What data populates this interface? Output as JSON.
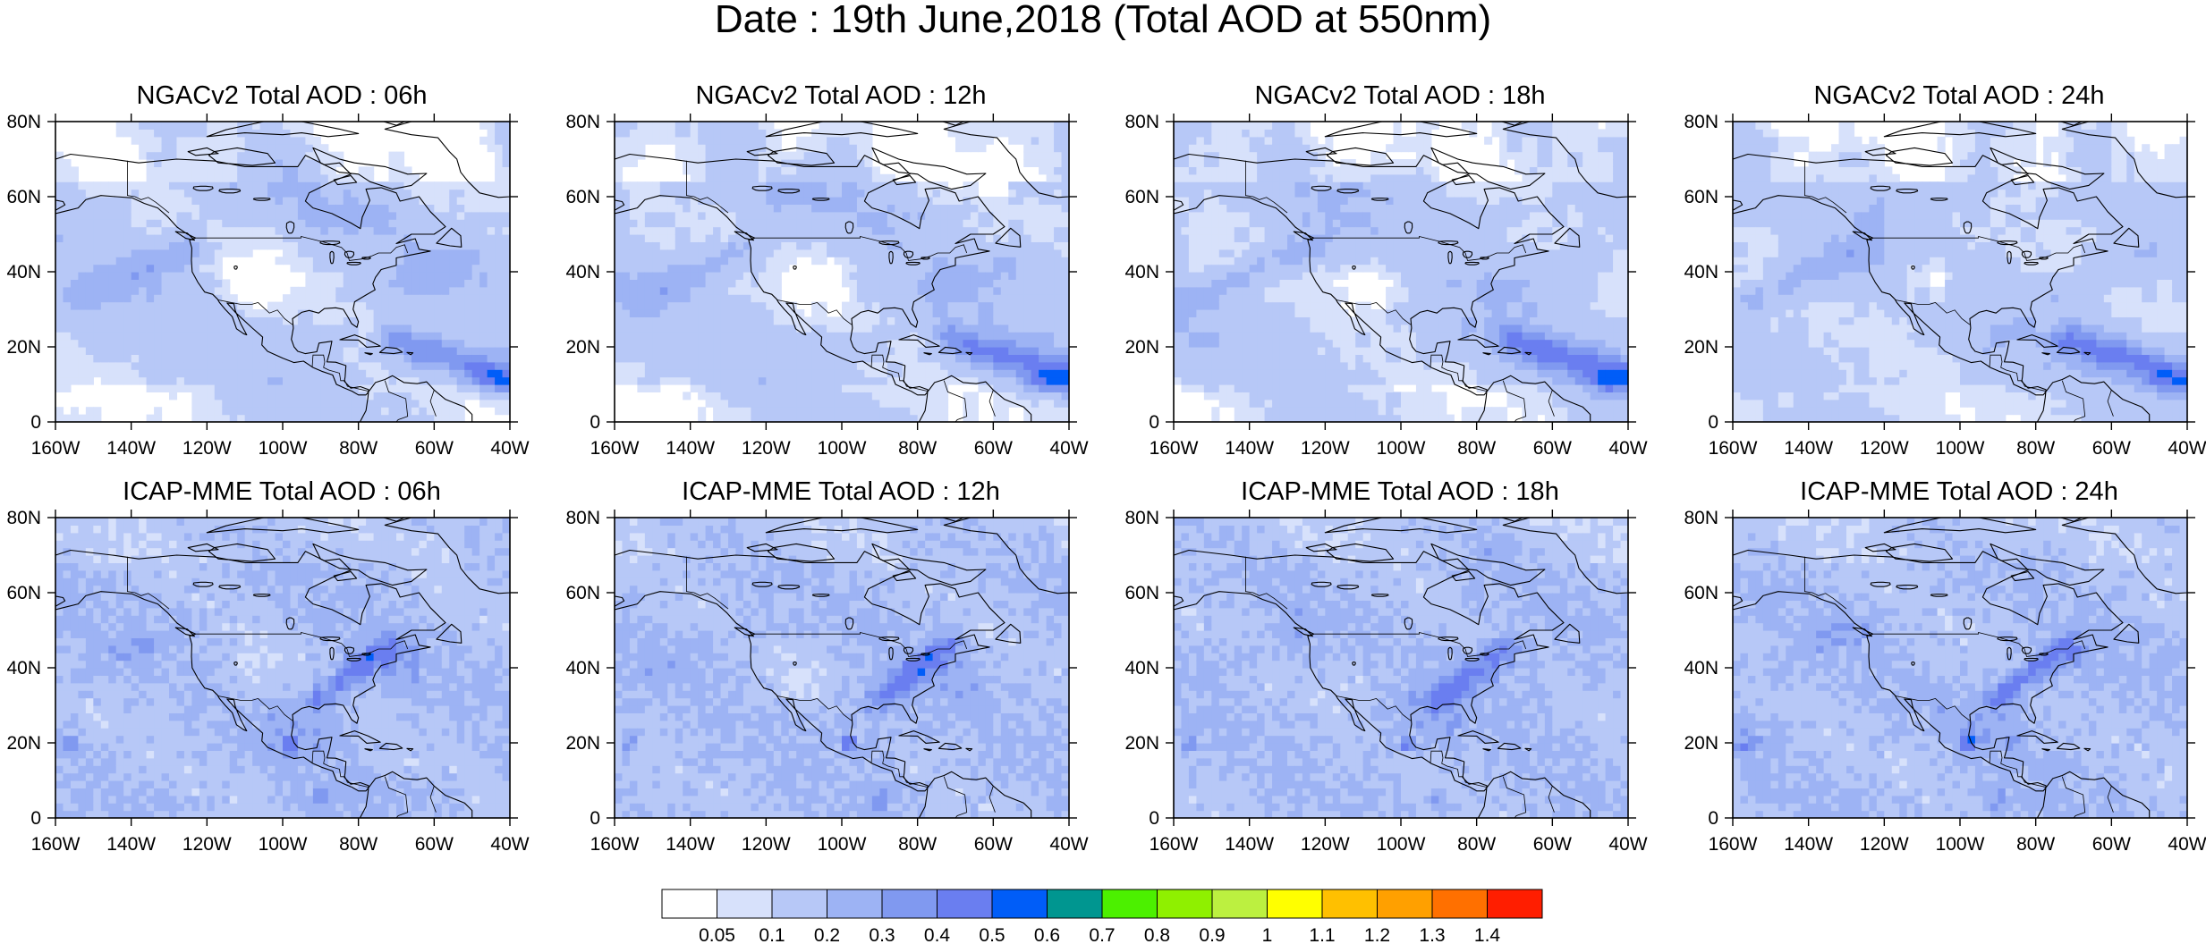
{
  "title": "Date : 19th June,2018 (Total AOD at 550nm)",
  "chart_data": [
    {
      "type": "heatmap",
      "title": "NGACv2 Total AOD : 06h",
      "model": "ngac",
      "hour": 6,
      "x_ticks": [
        "160W",
        "140W",
        "120W",
        "100W",
        "80W",
        "60W",
        "40W"
      ],
      "x_values": [
        -160,
        -140,
        -120,
        -100,
        -80,
        -60,
        -40
      ],
      "y_ticks": [
        "0",
        "20N",
        "40N",
        "60N",
        "80N"
      ],
      "y_values": [
        0,
        20,
        40,
        60,
        80
      ],
      "xlim": [
        -160,
        -40
      ],
      "ylim": [
        0,
        80
      ]
    },
    {
      "type": "heatmap",
      "title": "NGACv2 Total AOD : 12h",
      "model": "ngac",
      "hour": 12,
      "x_ticks": [
        "160W",
        "140W",
        "120W",
        "100W",
        "80W",
        "60W",
        "40W"
      ],
      "x_values": [
        -160,
        -140,
        -120,
        -100,
        -80,
        -60,
        -40
      ],
      "y_ticks": [
        "0",
        "20N",
        "40N",
        "60N",
        "80N"
      ],
      "y_values": [
        0,
        20,
        40,
        60,
        80
      ],
      "xlim": [
        -160,
        -40
      ],
      "ylim": [
        0,
        80
      ]
    },
    {
      "type": "heatmap",
      "title": "NGACv2 Total AOD : 18h",
      "model": "ngac",
      "hour": 18,
      "x_ticks": [
        "160W",
        "140W",
        "120W",
        "100W",
        "80W",
        "60W",
        "40W"
      ],
      "x_values": [
        -160,
        -140,
        -120,
        -100,
        -80,
        -60,
        -40
      ],
      "y_ticks": [
        "0",
        "20N",
        "40N",
        "60N",
        "80N"
      ],
      "y_values": [
        0,
        20,
        40,
        60,
        80
      ],
      "xlim": [
        -160,
        -40
      ],
      "ylim": [
        0,
        80
      ]
    },
    {
      "type": "heatmap",
      "title": "NGACv2 Total AOD : 24h",
      "model": "ngac",
      "hour": 24,
      "x_ticks": [
        "160W",
        "140W",
        "120W",
        "100W",
        "80W",
        "60W",
        "40W"
      ],
      "x_values": [
        -160,
        -140,
        -120,
        -100,
        -80,
        -60,
        -40
      ],
      "y_ticks": [
        "0",
        "20N",
        "40N",
        "60N",
        "80N"
      ],
      "y_values": [
        0,
        20,
        40,
        60,
        80
      ],
      "xlim": [
        -160,
        -40
      ],
      "ylim": [
        0,
        80
      ]
    },
    {
      "type": "heatmap",
      "title": "ICAP-MME Total AOD : 06h",
      "model": "icap",
      "hour": 6,
      "x_ticks": [
        "160W",
        "140W",
        "120W",
        "100W",
        "80W",
        "60W",
        "40W"
      ],
      "x_values": [
        -160,
        -140,
        -120,
        -100,
        -80,
        -60,
        -40
      ],
      "y_ticks": [
        "0",
        "20N",
        "40N",
        "60N",
        "80N"
      ],
      "y_values": [
        0,
        20,
        40,
        60,
        80
      ],
      "xlim": [
        -160,
        -40
      ],
      "ylim": [
        0,
        80
      ]
    },
    {
      "type": "heatmap",
      "title": "ICAP-MME Total AOD : 12h",
      "model": "icap",
      "hour": 12,
      "x_ticks": [
        "160W",
        "140W",
        "120W",
        "100W",
        "80W",
        "60W",
        "40W"
      ],
      "x_values": [
        -160,
        -140,
        -120,
        -100,
        -80,
        -60,
        -40
      ],
      "y_ticks": [
        "0",
        "20N",
        "40N",
        "60N",
        "80N"
      ],
      "y_values": [
        0,
        20,
        40,
        60,
        80
      ],
      "xlim": [
        -160,
        -40
      ],
      "ylim": [
        0,
        80
      ]
    },
    {
      "type": "heatmap",
      "title": "ICAP-MME Total AOD : 18h",
      "model": "icap",
      "hour": 18,
      "x_ticks": [
        "160W",
        "140W",
        "120W",
        "100W",
        "80W",
        "60W",
        "40W"
      ],
      "x_values": [
        -160,
        -140,
        -120,
        -100,
        -80,
        -60,
        -40
      ],
      "y_ticks": [
        "0",
        "20N",
        "40N",
        "60N",
        "80N"
      ],
      "y_values": [
        0,
        20,
        40,
        60,
        80
      ],
      "xlim": [
        -160,
        -40
      ],
      "ylim": [
        0,
        80
      ]
    },
    {
      "type": "heatmap",
      "title": "ICAP-MME Total AOD : 24h",
      "model": "icap",
      "hour": 24,
      "x_ticks": [
        "160W",
        "140W",
        "120W",
        "100W",
        "80W",
        "60W",
        "40W"
      ],
      "x_values": [
        -160,
        -140,
        -120,
        -100,
        -80,
        -60,
        -40
      ],
      "y_ticks": [
        "0",
        "20N",
        "40N",
        "60N",
        "80N"
      ],
      "y_values": [
        0,
        20,
        40,
        60,
        80
      ],
      "xlim": [
        -160,
        -40
      ],
      "ylim": [
        0,
        80
      ]
    }
  ],
  "colorbar": {
    "labels": [
      "0.05",
      "0.1",
      "0.2",
      "0.3",
      "0.4",
      "0.5",
      "0.6",
      "0.7",
      "0.8",
      "0.9",
      "1",
      "1.1",
      "1.2",
      "1.3",
      "1.4"
    ],
    "colors": [
      "#ffffff",
      "#d7e1fb",
      "#b7c8f7",
      "#9db3f4",
      "#8099f0",
      "#6a7ef0",
      "#005df8",
      "#009690",
      "#4cf000",
      "#8ff000",
      "#bcf040",
      "#ffff00",
      "#ffc000",
      "#ffa000",
      "#ff7000",
      "#ff1e00"
    ]
  }
}
